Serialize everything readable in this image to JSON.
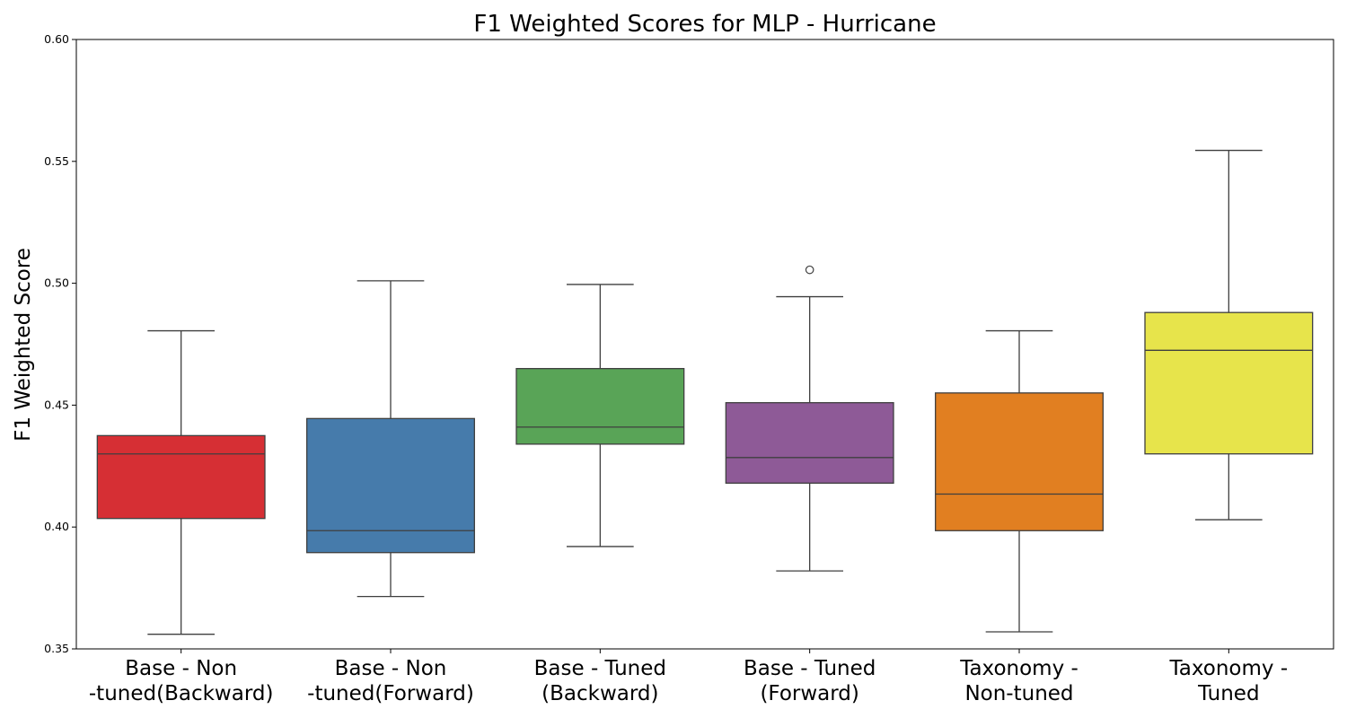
{
  "chart_data": {
    "type": "box",
    "title": "F1 Weighted Scores for MLP - Hurricane",
    "xlabel": "",
    "ylabel": "F1 Weighted Score",
    "ylim": [
      0.35,
      0.6
    ],
    "yticks": [
      "0.35",
      "0.40",
      "0.45",
      "0.50",
      "0.55",
      "0.60"
    ],
    "grid": false,
    "categories": [
      {
        "lines": [
          "Base - Non",
          "-tuned(Backward)"
        ],
        "color": "#d62f34",
        "whisker_low": 0.356,
        "q1": 0.4035,
        "median": 0.43,
        "q3": 0.4375,
        "whisker_high": 0.4805,
        "outliers": []
      },
      {
        "lines": [
          "Base - Non",
          "-tuned(Forward)"
        ],
        "color": "#467bab",
        "whisker_low": 0.3715,
        "q1": 0.3895,
        "median": 0.3985,
        "q3": 0.4445,
        "whisker_high": 0.501,
        "outliers": []
      },
      {
        "lines": [
          "Base - Tuned",
          "(Backward)"
        ],
        "color": "#59a457",
        "whisker_low": 0.392,
        "q1": 0.434,
        "median": 0.441,
        "q3": 0.465,
        "whisker_high": 0.4995,
        "outliers": []
      },
      {
        "lines": [
          "Base - Tuned",
          "(Forward)"
        ],
        "color": "#8e5a97",
        "whisker_low": 0.382,
        "q1": 0.418,
        "median": 0.4285,
        "q3": 0.451,
        "whisker_high": 0.4945,
        "outliers": [
          0.5055
        ]
      },
      {
        "lines": [
          "Taxonomy -",
          "Non-tuned"
        ],
        "color": "#e17f21",
        "whisker_low": 0.357,
        "q1": 0.3985,
        "median": 0.4135,
        "q3": 0.455,
        "whisker_high": 0.4805,
        "outliers": []
      },
      {
        "lines": [
          "Taxonomy -",
          "Tuned"
        ],
        "color": "#e7e44b",
        "whisker_low": 0.403,
        "q1": 0.43,
        "median": 0.4725,
        "q3": 0.488,
        "whisker_high": 0.5545,
        "outliers": []
      }
    ]
  }
}
